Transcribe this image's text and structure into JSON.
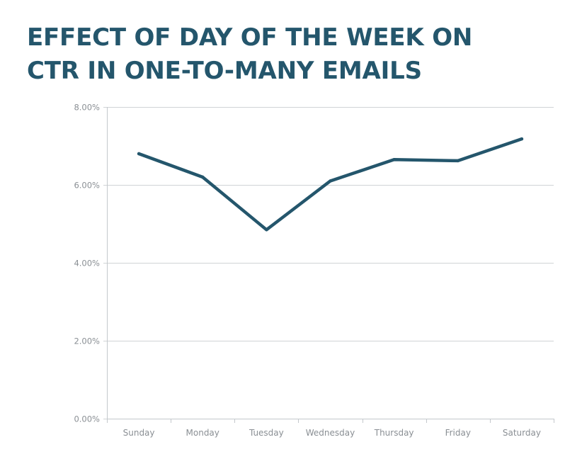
{
  "chart_data": {
    "type": "line",
    "title_lines": [
      "EFFECT OF DAY OF THE WEEK ON",
      "CTR IN ONE-TO-MANY EMAILS"
    ],
    "categories": [
      "Sunday",
      "Monday",
      "Tuesday",
      "Wednesday",
      "Thursday",
      "Friday",
      "Saturday"
    ],
    "series": [
      {
        "values": [
          6.8,
          6.2,
          4.85,
          6.1,
          6.65,
          6.62,
          7.18
        ]
      }
    ],
    "yticks": [
      "0.00%",
      "2.00%",
      "4.00%",
      "6.00%",
      "8.00%"
    ],
    "ylim": [
      0,
      8
    ],
    "ytick_step": 2,
    "grid": true,
    "line_color": "#24566c",
    "title_color": "#24566c"
  }
}
